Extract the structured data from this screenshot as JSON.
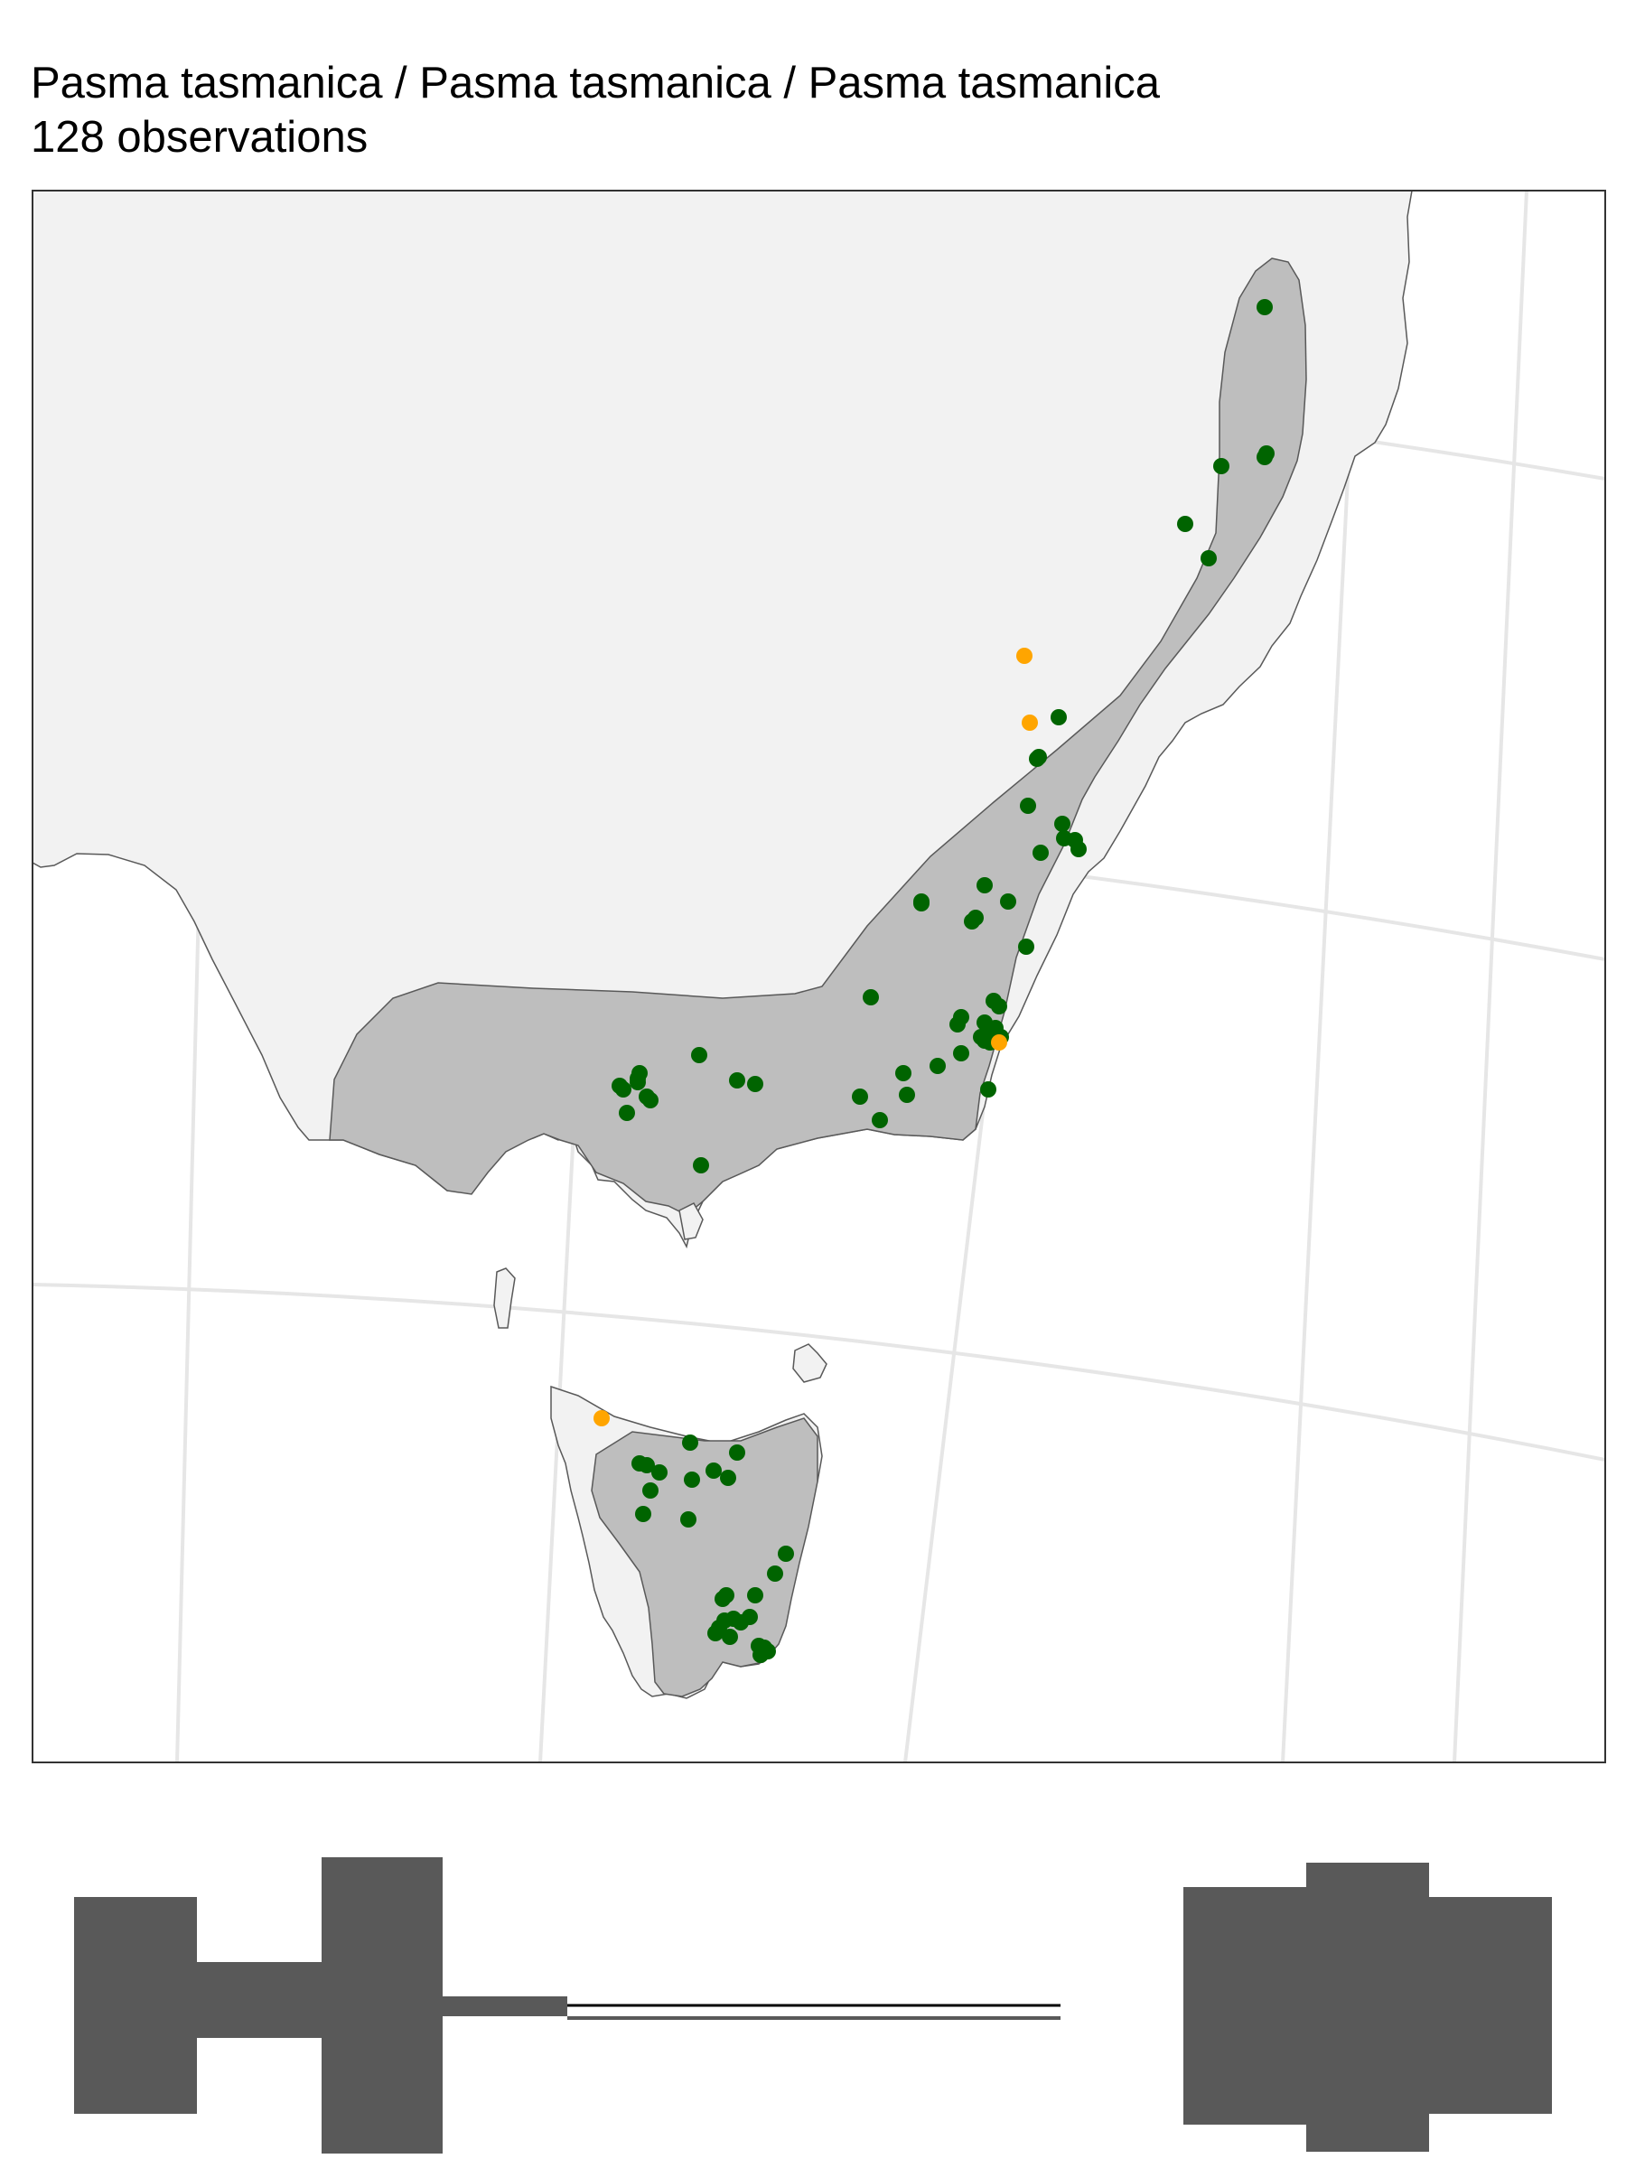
{
  "title": "Pasma tasmanica / Pasma tasmanica / Pasma tasmanica",
  "subtitle": "128 observations",
  "colors": {
    "land": "#f2f2f2",
    "range": "#bebebe",
    "outline": "#595959",
    "graticule": "#e6e6e6",
    "observation_in_range": "#006400",
    "observation_out_of_range": "#ffa500",
    "histogram": "#595959",
    "background": "#ffffff"
  },
  "map": {
    "layers": [
      "graticule",
      "land",
      "range-polygon",
      "observations"
    ],
    "observations_in_range_color": "observation_in_range",
    "observations_out_of_range_color": "observation_out_of_range"
  },
  "histogram": {
    "description": "silhouette",
    "shape": "symmetric"
  }
}
